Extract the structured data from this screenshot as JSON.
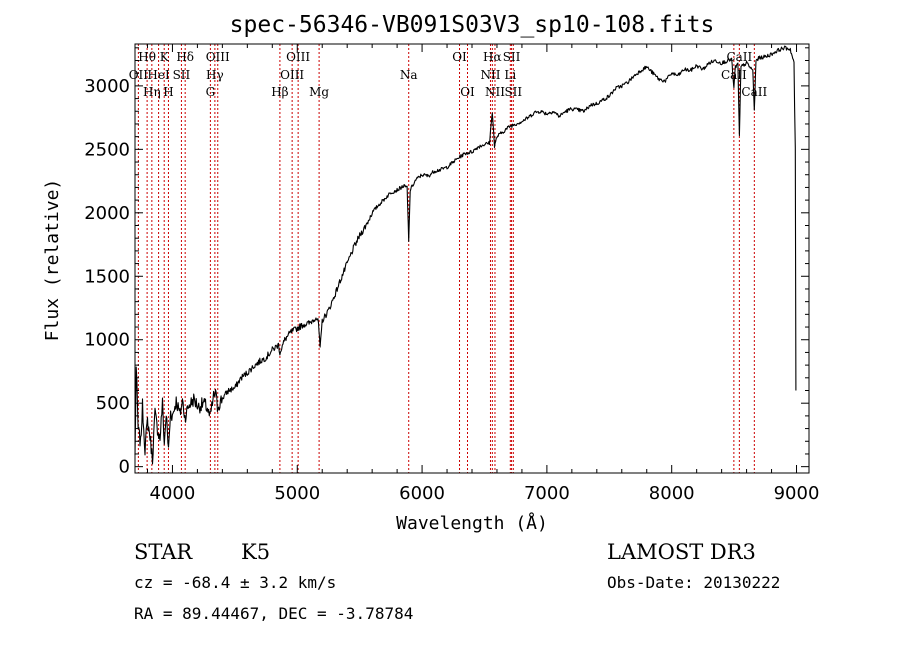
{
  "chart_data": {
    "type": "line",
    "title": "spec-56346-VB091S03V3_sp10-108.fits",
    "xlabel": "Wavelength (Å)",
    "ylabel": "Flux (relative)",
    "xlim": [
      3700,
      9100
    ],
    "ylim": [
      -50,
      3330
    ],
    "xticks": [
      4000,
      5000,
      6000,
      7000,
      8000,
      9000
    ],
    "yticks": [
      0,
      500,
      1000,
      1500,
      2000,
      2500,
      3000
    ],
    "series": [
      {
        "name": "Flux",
        "anchors": [
          [
            3700,
            80
          ],
          [
            3710,
            780
          ],
          [
            3725,
            300
          ],
          [
            3745,
            180
          ],
          [
            3760,
            480
          ],
          [
            3780,
            140
          ],
          [
            3800,
            360
          ],
          [
            3820,
            240
          ],
          [
            3840,
            60
          ],
          [
            3860,
            420
          ],
          [
            3880,
            300
          ],
          [
            3900,
            220
          ],
          [
            3920,
            500
          ],
          [
            3935,
            180
          ],
          [
            3950,
            420
          ],
          [
            3968,
            130
          ],
          [
            3985,
            430
          ],
          [
            4000,
            400
          ],
          [
            4030,
            520
          ],
          [
            4060,
            410
          ],
          [
            4080,
            520
          ],
          [
            4100,
            390
          ],
          [
            4130,
            480
          ],
          [
            4170,
            530
          ],
          [
            4210,
            470
          ],
          [
            4250,
            500
          ],
          [
            4280,
            460
          ],
          [
            4300,
            380
          ],
          [
            4330,
            550
          ],
          [
            4345,
            580
          ],
          [
            4360,
            470
          ],
          [
            4400,
            540
          ],
          [
            4450,
            600
          ],
          [
            4500,
            620
          ],
          [
            4550,
            700
          ],
          [
            4600,
            740
          ],
          [
            4650,
            790
          ],
          [
            4700,
            830
          ],
          [
            4750,
            860
          ],
          [
            4800,
            920
          ],
          [
            4850,
            960
          ],
          [
            4861,
            900
          ],
          [
            4900,
            1000
          ],
          [
            4950,
            1060
          ],
          [
            5000,
            1090
          ],
          [
            5050,
            1120
          ],
          [
            5100,
            1130
          ],
          [
            5150,
            1180
          ],
          [
            5170,
            1130
          ],
          [
            5183,
            920
          ],
          [
            5200,
            1150
          ],
          [
            5250,
            1230
          ],
          [
            5300,
            1350
          ],
          [
            5350,
            1480
          ],
          [
            5400,
            1600
          ],
          [
            5450,
            1720
          ],
          [
            5500,
            1820
          ],
          [
            5550,
            1900
          ],
          [
            5600,
            2000
          ],
          [
            5650,
            2060
          ],
          [
            5700,
            2110
          ],
          [
            5750,
            2160
          ],
          [
            5800,
            2180
          ],
          [
            5850,
            2210
          ],
          [
            5880,
            2200
          ],
          [
            5893,
            1780
          ],
          [
            5905,
            2180
          ],
          [
            5950,
            2260
          ],
          [
            6000,
            2300
          ],
          [
            6050,
            2290
          ],
          [
            6100,
            2330
          ],
          [
            6150,
            2340
          ],
          [
            6200,
            2360
          ],
          [
            6250,
            2400
          ],
          [
            6300,
            2440
          ],
          [
            6350,
            2470
          ],
          [
            6400,
            2480
          ],
          [
            6450,
            2520
          ],
          [
            6500,
            2540
          ],
          [
            6540,
            2550
          ],
          [
            6563,
            2800
          ],
          [
            6580,
            2520
          ],
          [
            6600,
            2600
          ],
          [
            6650,
            2640
          ],
          [
            6700,
            2680
          ],
          [
            6750,
            2700
          ],
          [
            6800,
            2720
          ],
          [
            6850,
            2750
          ],
          [
            6900,
            2790
          ],
          [
            6950,
            2800
          ],
          [
            7000,
            2780
          ],
          [
            7050,
            2800
          ],
          [
            7100,
            2760
          ],
          [
            7150,
            2800
          ],
          [
            7200,
            2820
          ],
          [
            7300,
            2800
          ],
          [
            7350,
            2850
          ],
          [
            7400,
            2860
          ],
          [
            7450,
            2890
          ],
          [
            7500,
            2920
          ],
          [
            7550,
            2980
          ],
          [
            7600,
            3000
          ],
          [
            7650,
            3030
          ],
          [
            7700,
            3080
          ],
          [
            7750,
            3120
          ],
          [
            7800,
            3150
          ],
          [
            7850,
            3100
          ],
          [
            7900,
            3050
          ],
          [
            7950,
            3040
          ],
          [
            8000,
            3100
          ],
          [
            8050,
            3080
          ],
          [
            8100,
            3130
          ],
          [
            8150,
            3120
          ],
          [
            8200,
            3160
          ],
          [
            8250,
            3130
          ],
          [
            8300,
            3180
          ],
          [
            8350,
            3200
          ],
          [
            8400,
            3180
          ],
          [
            8450,
            3200
          ],
          [
            8480,
            3210
          ],
          [
            8498,
            2980
          ],
          [
            8510,
            3150
          ],
          [
            8530,
            3170
          ],
          [
            8542,
            2600
          ],
          [
            8555,
            3150
          ],
          [
            8600,
            3180
          ],
          [
            8650,
            3120
          ],
          [
            8662,
            2800
          ],
          [
            8675,
            3200
          ],
          [
            8700,
            3220
          ],
          [
            8750,
            3230
          ],
          [
            8800,
            3250
          ],
          [
            8850,
            3280
          ],
          [
            8900,
            3300
          ],
          [
            8950,
            3290
          ],
          [
            8980,
            3180
          ],
          [
            8990,
            2500
          ],
          [
            8995,
            600
          ]
        ]
      }
    ],
    "spectral_lines": [
      {
        "name": "Hθ",
        "wavelength": 3797,
        "row": 0
      },
      {
        "name": "OII",
        "wavelength": 3727,
        "row": 1
      },
      {
        "name": "Hη",
        "wavelength": 3835,
        "row": 2
      },
      {
        "name": "K",
        "wavelength": 3934,
        "row": 0
      },
      {
        "name": "HeI",
        "wavelength": 3889,
        "row": 1
      },
      {
        "name": "H",
        "wavelength": 3968,
        "row": 2
      },
      {
        "name": "Hδ",
        "wavelength": 4102,
        "row": 0
      },
      {
        "name": "SII",
        "wavelength": 4072,
        "row": 1
      },
      {
        "name": "OIII",
        "wavelength": 4363,
        "row": 0
      },
      {
        "name": "Hγ",
        "wavelength": 4340,
        "row": 1
      },
      {
        "name": "G",
        "wavelength": 4304,
        "row": 2
      },
      {
        "name": "Hβ",
        "wavelength": 4861,
        "row": 2
      },
      {
        "name": "OIII",
        "wavelength": 4959,
        "row": 1
      },
      {
        "name": "OIII",
        "wavelength": 5007,
        "row": 0
      },
      {
        "name": "Mg",
        "wavelength": 5175,
        "row": 2
      },
      {
        "name": "Na",
        "wavelength": 5893,
        "row": 1
      },
      {
        "name": "OI",
        "wavelength": 6300,
        "row": 0
      },
      {
        "name": "OI",
        "wavelength": 6364,
        "row": 2
      },
      {
        "name": "Hα",
        "wavelength": 6563,
        "row": 0
      },
      {
        "name": "NII",
        "wavelength": 6548,
        "row": 1
      },
      {
        "name": "NII",
        "wavelength": 6584,
        "row": 2
      },
      {
        "name": "SII",
        "wavelength": 6717,
        "row": 0
      },
      {
        "name": "Li",
        "wavelength": 6707,
        "row": 1
      },
      {
        "name": "SII",
        "wavelength": 6731,
        "row": 2
      },
      {
        "name": "CaII",
        "wavelength": 8542,
        "row": 0
      },
      {
        "name": "CaII",
        "wavelength": 8498,
        "row": 1
      },
      {
        "name": "CaII",
        "wavelength": 8662,
        "row": 2
      }
    ]
  },
  "footer": {
    "object_class": "STAR",
    "subclass": "K5",
    "survey": "LAMOST DR3",
    "redshift": "cz = -68.4 ± 3.2 km/s",
    "obs_date": "Obs-Date: 20130222",
    "coords": "RA =  89.44467, DEC =  -3.78784"
  },
  "colors": {
    "line": "#000000",
    "marker": "#cc0000",
    "background": "#ffffff"
  }
}
